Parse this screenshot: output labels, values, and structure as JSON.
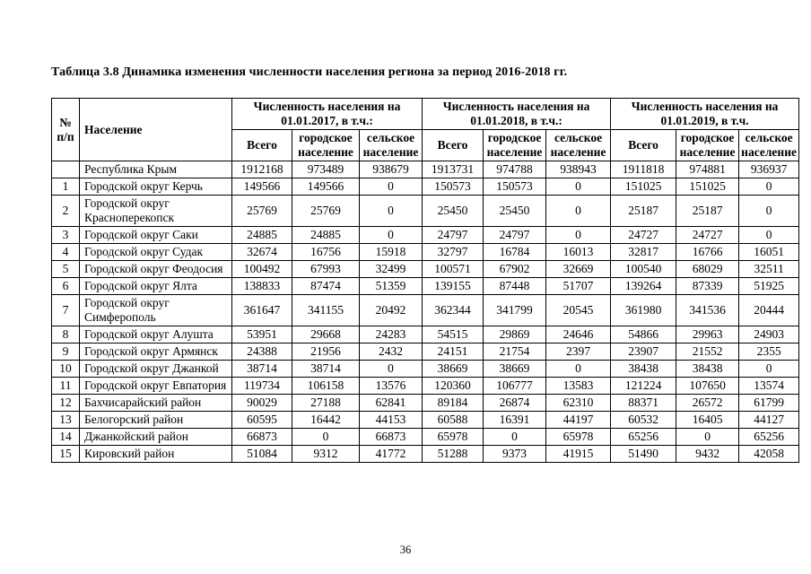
{
  "document": {
    "title": "Таблица 3.8 Динамика изменения численности населения региона за период 2016-2018 гг.",
    "page_number": "36"
  },
  "table": {
    "header": {
      "num": "№ п/п",
      "population": "Население"
    },
    "groups": [
      {
        "title": "Численность населения на 01.01.2017, в т.ч.:",
        "subs": [
          "Всего",
          "городское население",
          "сельское население"
        ]
      },
      {
        "title": "Численность населения на 01.01.2018, в т.ч.:",
        "subs": [
          "Всего",
          "городское население",
          "сельское население"
        ]
      },
      {
        "title": "Численность населения на 01.01.2019, в т.ч.",
        "subs": [
          "Всего",
          "городское население",
          "сельское население"
        ]
      }
    ],
    "rows": [
      {
        "num": "",
        "name": "Республика Крым",
        "values": [
          "1912168",
          "973489",
          "938679",
          "1913731",
          "974788",
          "938943",
          "1911818",
          "974881",
          "936937"
        ]
      },
      {
        "num": "1",
        "name": "Городской округ Керчь",
        "values": [
          "149566",
          "149566",
          "0",
          "150573",
          "150573",
          "0",
          "151025",
          "151025",
          "0"
        ]
      },
      {
        "num": "2",
        "name": "Городской округ Красноперекопск",
        "values": [
          "25769",
          "25769",
          "0",
          "25450",
          "25450",
          "0",
          "25187",
          "25187",
          "0"
        ]
      },
      {
        "num": "3",
        "name": "Городской округ Саки",
        "values": [
          "24885",
          "24885",
          "0",
          "24797",
          "24797",
          "0",
          "24727",
          "24727",
          "0"
        ]
      },
      {
        "num": "4",
        "name": "Городской округ Судак",
        "values": [
          "32674",
          "16756",
          "15918",
          "32797",
          "16784",
          "16013",
          "32817",
          "16766",
          "16051"
        ]
      },
      {
        "num": "5",
        "name": "Городской округ Феодосия",
        "values": [
          "100492",
          "67993",
          "32499",
          "100571",
          "67902",
          "32669",
          "100540",
          "68029",
          "32511"
        ]
      },
      {
        "num": "6",
        "name": "Городской округ Ялта",
        "values": [
          "138833",
          "87474",
          "51359",
          "139155",
          "87448",
          "51707",
          "139264",
          "87339",
          "51925"
        ]
      },
      {
        "num": "7",
        "name": "Городской округ Симферополь",
        "values": [
          "361647",
          "341155",
          "20492",
          "362344",
          "341799",
          "20545",
          "361980",
          "341536",
          "20444"
        ]
      },
      {
        "num": "8",
        "name": "Городской округ Алушта",
        "values": [
          "53951",
          "29668",
          "24283",
          "54515",
          "29869",
          "24646",
          "54866",
          "29963",
          "24903"
        ]
      },
      {
        "num": "9",
        "name": "Городской округ Армянск",
        "values": [
          "24388",
          "21956",
          "2432",
          "24151",
          "21754",
          "2397",
          "23907",
          "21552",
          "2355"
        ]
      },
      {
        "num": "10",
        "name": "Городской округ Джанкой",
        "values": [
          "38714",
          "38714",
          "0",
          "38669",
          "38669",
          "0",
          "38438",
          "38438",
          "0"
        ]
      },
      {
        "num": "11",
        "name": "Городской округ Евпатория",
        "values": [
          "119734",
          "106158",
          "13576",
          "120360",
          "106777",
          "13583",
          "121224",
          "107650",
          "13574"
        ]
      },
      {
        "num": "12",
        "name": "Бахчисарайский район",
        "values": [
          "90029",
          "27188",
          "62841",
          "89184",
          "26874",
          "62310",
          "88371",
          "26572",
          "61799"
        ]
      },
      {
        "num": "13",
        "name": "Белогорский район",
        "values": [
          "60595",
          "16442",
          "44153",
          "60588",
          "16391",
          "44197",
          "60532",
          "16405",
          "44127"
        ]
      },
      {
        "num": "14",
        "name": "Джанкойский район",
        "values": [
          "66873",
          "0",
          "66873",
          "65978",
          "0",
          "65978",
          "65256",
          "0",
          "65256"
        ]
      },
      {
        "num": "15",
        "name": "Кировский район",
        "values": [
          "51084",
          "9312",
          "41772",
          "51288",
          "9373",
          "41915",
          "51490",
          "9432",
          "42058"
        ]
      }
    ]
  }
}
